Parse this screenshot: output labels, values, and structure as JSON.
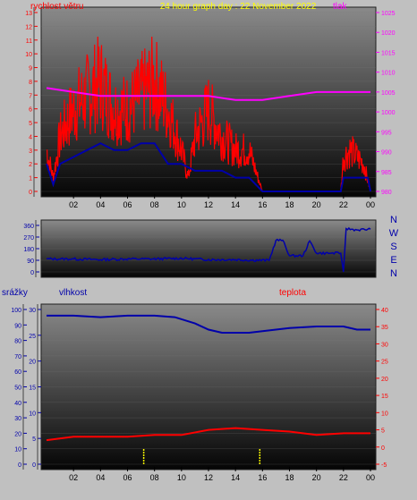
{
  "colors": {
    "page_bg": "#c0c0c0",
    "wind": "#ff0000",
    "gust": "#ff0000",
    "pressure": "#ff00ff",
    "direction": "#0000aa",
    "humidity": "#0000aa",
    "temperature": "#ff0000",
    "rain": "#ffff00",
    "title": "#ffff00",
    "left_axis": "#ff0000",
    "right_axis_top": "#ff00ff",
    "axis_blue": "#0000aa",
    "axis_red": "#ff0000"
  },
  "chart_data": [
    {
      "id": "wind",
      "type": "line",
      "title": "24 hour graph day : 22 November 2022",
      "labels": {
        "left": "rychlost větru",
        "right": "tlak"
      },
      "x_ticks": [
        "02",
        "04",
        "06",
        "08",
        "10",
        "12",
        "14",
        "16",
        "18",
        "20",
        "22",
        "00"
      ],
      "y_left": {
        "range": [
          0,
          13
        ],
        "ticks": [
          "0",
          "1",
          "2",
          "3",
          "4",
          "5",
          "6",
          "7",
          "8",
          "9",
          "10",
          "11",
          "12",
          "13"
        ]
      },
      "y_right": {
        "range": [
          980,
          1025
        ],
        "ticks": [
          "980",
          "985",
          "990",
          "995",
          "1000",
          "1005",
          "1010",
          "1015",
          "1020",
          "1025"
        ]
      },
      "series": [
        {
          "key": "wind_avg",
          "axis": "left",
          "points": [
            [
              0,
              2
            ],
            [
              0.5,
              0.5
            ],
            [
              1,
              2
            ],
            [
              2,
              2.5
            ],
            [
              3,
              3
            ],
            [
              4,
              3.5
            ],
            [
              5,
              3
            ],
            [
              6,
              3
            ],
            [
              7,
              3.5
            ],
            [
              8,
              3.5
            ],
            [
              9,
              2
            ],
            [
              10,
              2
            ],
            [
              11,
              1.5
            ],
            [
              12,
              1.5
            ],
            [
              13,
              1.5
            ],
            [
              14,
              1
            ],
            [
              15,
              1
            ],
            [
              16,
              0
            ],
            [
              17,
              0
            ],
            [
              18,
              0
            ],
            [
              19,
              0
            ],
            [
              20,
              0
            ],
            [
              21,
              0
            ],
            [
              21.8,
              0
            ],
            [
              22,
              1
            ],
            [
              23,
              1
            ],
            [
              23.8,
              1
            ],
            [
              24,
              0
            ]
          ]
        },
        {
          "key": "wind_gust",
          "axis": "left",
          "points": [
            [
              0,
              3
            ],
            [
              0.5,
              1
            ],
            [
              1,
              4
            ],
            [
              2,
              6
            ],
            [
              3,
              7
            ],
            [
              4,
              8
            ],
            [
              5,
              6
            ],
            [
              6,
              6
            ],
            [
              7,
              7
            ],
            [
              8,
              8
            ],
            [
              9,
              6
            ],
            [
              10,
              3
            ],
            [
              10.5,
              1
            ],
            [
              11,
              4
            ],
            [
              12,
              6
            ],
            [
              13,
              4
            ],
            [
              14,
              3
            ],
            [
              15,
              3
            ],
            [
              16,
              0
            ],
            [
              17,
              0
            ],
            [
              18,
              0
            ],
            [
              19,
              0
            ],
            [
              20,
              0
            ],
            [
              21,
              0
            ],
            [
              21.8,
              0
            ],
            [
              22,
              2.5
            ],
            [
              22.5,
              3
            ],
            [
              23,
              2.5
            ],
            [
              23.5,
              2
            ],
            [
              24,
              0
            ]
          ]
        },
        {
          "key": "pressure",
          "axis": "right",
          "points": [
            [
              0,
              1006
            ],
            [
              2,
              1005
            ],
            [
              4,
              1004
            ],
            [
              6,
              1004
            ],
            [
              8,
              1004
            ],
            [
              10,
              1004
            ],
            [
              12,
              1004
            ],
            [
              14,
              1003
            ],
            [
              16,
              1003
            ],
            [
              18,
              1004
            ],
            [
              20,
              1005
            ],
            [
              22,
              1005
            ],
            [
              24,
              1005
            ]
          ]
        }
      ]
    },
    {
      "id": "direction",
      "type": "line",
      "labels": {
        "right": [
          "N",
          "W",
          "S",
          "E",
          "N"
        ]
      },
      "x_ticks": [],
      "y_left": {
        "range": [
          0,
          360
        ],
        "ticks": [
          "0",
          "90",
          "180",
          "270",
          "360"
        ]
      },
      "series": [
        {
          "key": "direction",
          "axis": "left",
          "points": [
            [
              0,
              100
            ],
            [
              2,
              100
            ],
            [
              4,
              95
            ],
            [
              6,
              100
            ],
            [
              8,
              100
            ],
            [
              10,
              105
            ],
            [
              12,
              95
            ],
            [
              14,
              95
            ],
            [
              15.5,
              90
            ],
            [
              16.5,
              90
            ],
            [
              17,
              245
            ],
            [
              17.5,
              245
            ],
            [
              18,
              125
            ],
            [
              19,
              125
            ],
            [
              19.5,
              240
            ],
            [
              20,
              145
            ],
            [
              21,
              145
            ],
            [
              21.8,
              145
            ],
            [
              22,
              0
            ],
            [
              22.2,
              335
            ],
            [
              23,
              325
            ],
            [
              24,
              330
            ]
          ]
        }
      ]
    },
    {
      "id": "humidity_temp",
      "type": "line",
      "labels": {
        "far_left": "srážky",
        "left": "vlhkost",
        "right": "teplota"
      },
      "x_ticks": [
        "02",
        "04",
        "06",
        "08",
        "10",
        "12",
        "14",
        "16",
        "18",
        "20",
        "22",
        "00"
      ],
      "y_far_left": {
        "range": [
          0,
          100
        ],
        "ticks": [
          "0",
          "10",
          "20",
          "30",
          "40",
          "50",
          "60",
          "70",
          "80",
          "90",
          "100"
        ]
      },
      "y_left": {
        "range": [
          0,
          30
        ],
        "ticks": [
          "0",
          "5",
          "10",
          "15",
          "20",
          "25",
          "30"
        ]
      },
      "y_right": {
        "range": [
          -5,
          40
        ],
        "ticks": [
          "-5",
          "0",
          "5",
          "10",
          "15",
          "20",
          "25",
          "30",
          "35",
          "40"
        ]
      },
      "series": [
        {
          "key": "humidity",
          "axis": "far_left",
          "points": [
            [
              0,
              96
            ],
            [
              2,
              96
            ],
            [
              4,
              95
            ],
            [
              6,
              96
            ],
            [
              8,
              96
            ],
            [
              9.5,
              95
            ],
            [
              11,
              91
            ],
            [
              12,
              87
            ],
            [
              13,
              85
            ],
            [
              14,
              85
            ],
            [
              15,
              85
            ],
            [
              16,
              86
            ],
            [
              18,
              88
            ],
            [
              20,
              89
            ],
            [
              22,
              89
            ],
            [
              23,
              87
            ],
            [
              24,
              87
            ]
          ]
        },
        {
          "key": "temperature",
          "axis": "right",
          "points": [
            [
              0,
              2
            ],
            [
              2,
              3
            ],
            [
              4,
              3
            ],
            [
              6,
              3
            ],
            [
              8,
              3.5
            ],
            [
              10,
              3.5
            ],
            [
              12,
              5
            ],
            [
              14,
              5.5
            ],
            [
              16,
              5
            ],
            [
              18,
              4.5
            ],
            [
              20,
              3.5
            ],
            [
              22,
              4
            ],
            [
              24,
              4
            ]
          ]
        },
        {
          "key": "rain",
          "axis": "far_left",
          "points": [
            [
              7.2,
              0
            ],
            [
              7.2,
              10
            ],
            [
              15.8,
              0
            ],
            [
              15.8,
              10
            ]
          ]
        }
      ]
    }
  ]
}
